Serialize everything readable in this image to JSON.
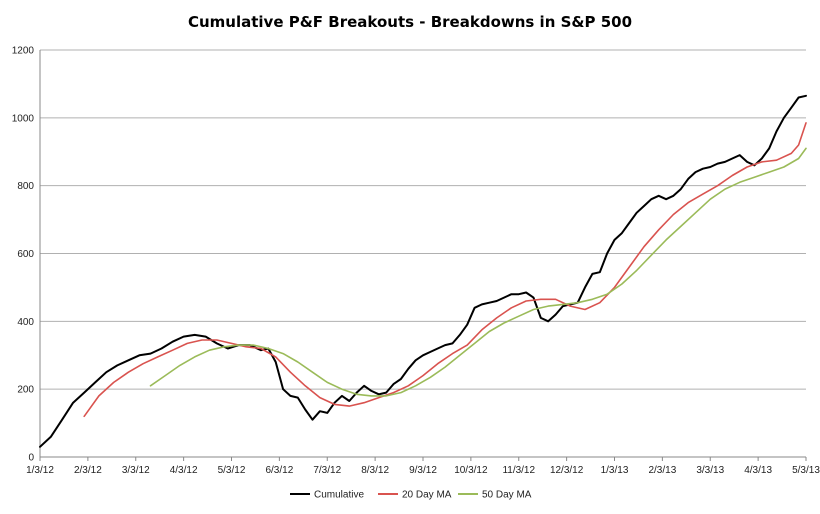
{
  "chart_data": {
    "type": "line",
    "title": "Cumulative P&F Breakouts - Breakdowns in S&P 500",
    "xlabel": "",
    "ylabel": "",
    "ylim": [
      0,
      1200
    ],
    "y_ticks": [
      "0",
      "200",
      "400",
      "600",
      "800",
      "1000",
      "1200"
    ],
    "x_tick_labels": [
      "1/3/12",
      "2/3/12",
      "3/3/12",
      "4/3/12",
      "5/3/12",
      "6/3/12",
      "7/3/12",
      "8/3/12",
      "9/3/12",
      "10/3/12",
      "11/3/12",
      "12/3/12",
      "1/3/13",
      "2/3/13",
      "3/3/13",
      "4/3/13",
      "5/3/13"
    ],
    "grid": "horizontal",
    "legend_position": "bottom",
    "series": [
      {
        "name": "Cumulative",
        "color": "#000000",
        "points": [
          [
            0,
            30
          ],
          [
            3,
            60
          ],
          [
            6,
            110
          ],
          [
            9,
            160
          ],
          [
            12,
            190
          ],
          [
            15,
            220
          ],
          [
            18,
            250
          ],
          [
            21,
            270
          ],
          [
            24,
            285
          ],
          [
            27,
            300
          ],
          [
            30,
            305
          ],
          [
            33,
            320
          ],
          [
            36,
            340
          ],
          [
            39,
            355
          ],
          [
            42,
            360
          ],
          [
            45,
            355
          ],
          [
            48,
            335
          ],
          [
            51,
            320
          ],
          [
            54,
            330
          ],
          [
            57,
            330
          ],
          [
            60,
            315
          ],
          [
            62,
            320
          ],
          [
            64,
            280
          ],
          [
            66,
            200
          ],
          [
            68,
            180
          ],
          [
            70,
            175
          ],
          [
            72,
            140
          ],
          [
            74,
            110
          ],
          [
            76,
            135
          ],
          [
            78,
            130
          ],
          [
            80,
            160
          ],
          [
            82,
            180
          ],
          [
            84,
            165
          ],
          [
            86,
            190
          ],
          [
            88,
            210
          ],
          [
            90,
            195
          ],
          [
            92,
            185
          ],
          [
            94,
            190
          ],
          [
            96,
            215
          ],
          [
            98,
            230
          ],
          [
            100,
            260
          ],
          [
            102,
            285
          ],
          [
            104,
            300
          ],
          [
            106,
            310
          ],
          [
            108,
            320
          ],
          [
            110,
            330
          ],
          [
            112,
            335
          ],
          [
            114,
            360
          ],
          [
            116,
            390
          ],
          [
            118,
            440
          ],
          [
            120,
            450
          ],
          [
            122,
            455
          ],
          [
            124,
            460
          ],
          [
            126,
            470
          ],
          [
            128,
            480
          ],
          [
            130,
            480
          ],
          [
            132,
            485
          ],
          [
            134,
            470
          ],
          [
            136,
            410
          ],
          [
            138,
            400
          ],
          [
            140,
            420
          ],
          [
            142,
            445
          ],
          [
            144,
            450
          ],
          [
            146,
            455
          ],
          [
            148,
            500
          ],
          [
            150,
            540
          ],
          [
            152,
            545
          ],
          [
            154,
            600
          ],
          [
            156,
            640
          ],
          [
            158,
            660
          ],
          [
            160,
            690
          ],
          [
            162,
            720
          ],
          [
            164,
            740
          ],
          [
            166,
            760
          ],
          [
            168,
            770
          ],
          [
            170,
            760
          ],
          [
            172,
            770
          ],
          [
            174,
            790
          ],
          [
            176,
            820
          ],
          [
            178,
            840
          ],
          [
            180,
            850
          ],
          [
            182,
            855
          ],
          [
            184,
            865
          ],
          [
            186,
            870
          ],
          [
            188,
            880
          ],
          [
            190,
            890
          ],
          [
            192,
            870
          ],
          [
            194,
            860
          ],
          [
            196,
            880
          ],
          [
            198,
            910
          ],
          [
            200,
            960
          ],
          [
            202,
            1000
          ],
          [
            204,
            1030
          ],
          [
            206,
            1060
          ],
          [
            208,
            1065
          ]
        ]
      },
      {
        "name": "20 Day MA",
        "color": "#d9534f",
        "points": [
          [
            12,
            120
          ],
          [
            16,
            180
          ],
          [
            20,
            220
          ],
          [
            24,
            250
          ],
          [
            28,
            275
          ],
          [
            32,
            295
          ],
          [
            36,
            315
          ],
          [
            40,
            335
          ],
          [
            44,
            345
          ],
          [
            48,
            345
          ],
          [
            52,
            335
          ],
          [
            56,
            325
          ],
          [
            60,
            320
          ],
          [
            64,
            295
          ],
          [
            68,
            250
          ],
          [
            72,
            210
          ],
          [
            76,
            175
          ],
          [
            80,
            155
          ],
          [
            84,
            150
          ],
          [
            88,
            160
          ],
          [
            92,
            175
          ],
          [
            96,
            190
          ],
          [
            100,
            210
          ],
          [
            104,
            240
          ],
          [
            108,
            275
          ],
          [
            112,
            305
          ],
          [
            116,
            330
          ],
          [
            120,
            375
          ],
          [
            124,
            410
          ],
          [
            128,
            440
          ],
          [
            132,
            460
          ],
          [
            136,
            465
          ],
          [
            140,
            465
          ],
          [
            144,
            445
          ],
          [
            148,
            435
          ],
          [
            152,
            455
          ],
          [
            156,
            500
          ],
          [
            160,
            560
          ],
          [
            164,
            620
          ],
          [
            168,
            670
          ],
          [
            172,
            715
          ],
          [
            176,
            750
          ],
          [
            180,
            775
          ],
          [
            184,
            800
          ],
          [
            188,
            830
          ],
          [
            192,
            855
          ],
          [
            196,
            870
          ],
          [
            200,
            875
          ],
          [
            204,
            895
          ],
          [
            206,
            920
          ],
          [
            208,
            985
          ]
        ]
      },
      {
        "name": "50 Day MA",
        "color": "#9bbb59",
        "points": [
          [
            30,
            210
          ],
          [
            34,
            240
          ],
          [
            38,
            270
          ],
          [
            42,
            295
          ],
          [
            46,
            315
          ],
          [
            50,
            325
          ],
          [
            54,
            330
          ],
          [
            58,
            330
          ],
          [
            62,
            320
          ],
          [
            66,
            305
          ],
          [
            70,
            280
          ],
          [
            74,
            250
          ],
          [
            78,
            220
          ],
          [
            82,
            200
          ],
          [
            86,
            185
          ],
          [
            90,
            180
          ],
          [
            94,
            180
          ],
          [
            98,
            190
          ],
          [
            102,
            210
          ],
          [
            106,
            235
          ],
          [
            110,
            265
          ],
          [
            114,
            300
          ],
          [
            118,
            335
          ],
          [
            122,
            370
          ],
          [
            126,
            395
          ],
          [
            130,
            415
          ],
          [
            134,
            435
          ],
          [
            138,
            445
          ],
          [
            142,
            450
          ],
          [
            146,
            455
          ],
          [
            150,
            465
          ],
          [
            154,
            480
          ],
          [
            158,
            510
          ],
          [
            162,
            550
          ],
          [
            166,
            595
          ],
          [
            170,
            640
          ],
          [
            174,
            680
          ],
          [
            178,
            720
          ],
          [
            182,
            760
          ],
          [
            186,
            790
          ],
          [
            190,
            810
          ],
          [
            194,
            825
          ],
          [
            198,
            840
          ],
          [
            202,
            855
          ],
          [
            206,
            880
          ],
          [
            208,
            910
          ]
        ]
      }
    ]
  }
}
